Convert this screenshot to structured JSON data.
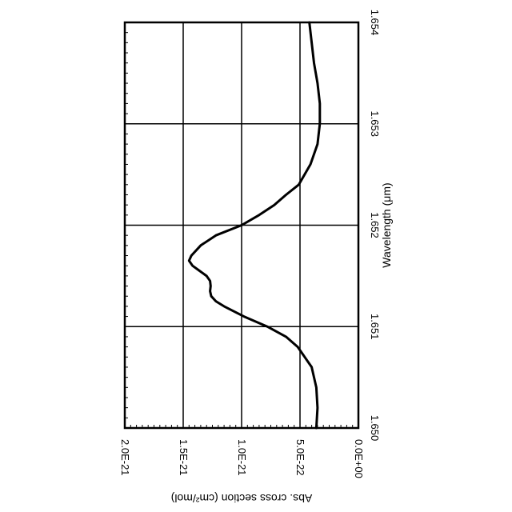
{
  "chart_data": {
    "type": "line",
    "orientation": "rotated-90-clockwise",
    "xlabel": "Wavelength (μm)",
    "ylabel": "Abs. cross section (cm²/mol)",
    "xlim": [
      1.65,
      1.654
    ],
    "ylim": [
      0,
      2e-21
    ],
    "grid": true,
    "x_ticks": [
      {
        "value": 1.65,
        "label": "1.650"
      },
      {
        "value": 1.651,
        "label": "1.651"
      },
      {
        "value": 1.652,
        "label": "1.652"
      },
      {
        "value": 1.653,
        "label": "1.653"
      },
      {
        "value": 1.654,
        "label": "1.654"
      }
    ],
    "y_ticks": [
      {
        "value": 0,
        "label": "0.0E+00"
      },
      {
        "value": 5e-22,
        "label": "5.0E-22"
      },
      {
        "value": 1e-21,
        "label": "1.0E-21"
      },
      {
        "value": 1.5e-21,
        "label": "1.5E-21"
      },
      {
        "value": 2e-21,
        "label": "2.0E-21"
      }
    ],
    "series": [
      {
        "x": [
          1.65,
          1.6502,
          1.6504,
          1.6506,
          1.6508,
          1.6509,
          1.651,
          1.6511,
          1.6512,
          1.65125,
          1.6513,
          1.65135,
          1.6514,
          1.65145,
          1.6515,
          1.65155,
          1.6516,
          1.65165,
          1.6517,
          1.6518,
          1.6519,
          1.652,
          1.6521,
          1.6522,
          1.6523,
          1.6524,
          1.6526,
          1.6528,
          1.653,
          1.6532,
          1.6534,
          1.6536,
          1.6538,
          1.654
        ],
        "y": [
          3.6e-22,
          3.5e-22,
          3.6e-22,
          4e-22,
          5.2e-22,
          6.2e-22,
          7.8e-22,
          9.8e-22,
          1.15e-21,
          1.22e-21,
          1.26e-21,
          1.27e-21,
          1.265e-21,
          1.27e-21,
          1.3e-21,
          1.36e-21,
          1.42e-21,
          1.45e-21,
          1.43e-21,
          1.35e-21,
          1.22e-21,
          1e-21,
          8.5e-22,
          7.2e-22,
          6.2e-22,
          5.1e-22,
          4.1e-22,
          3.5e-22,
          3.3e-22,
          3.3e-22,
          3.5e-22,
          3.8e-22,
          4e-22,
          4.2e-22
        ]
      }
    ]
  }
}
